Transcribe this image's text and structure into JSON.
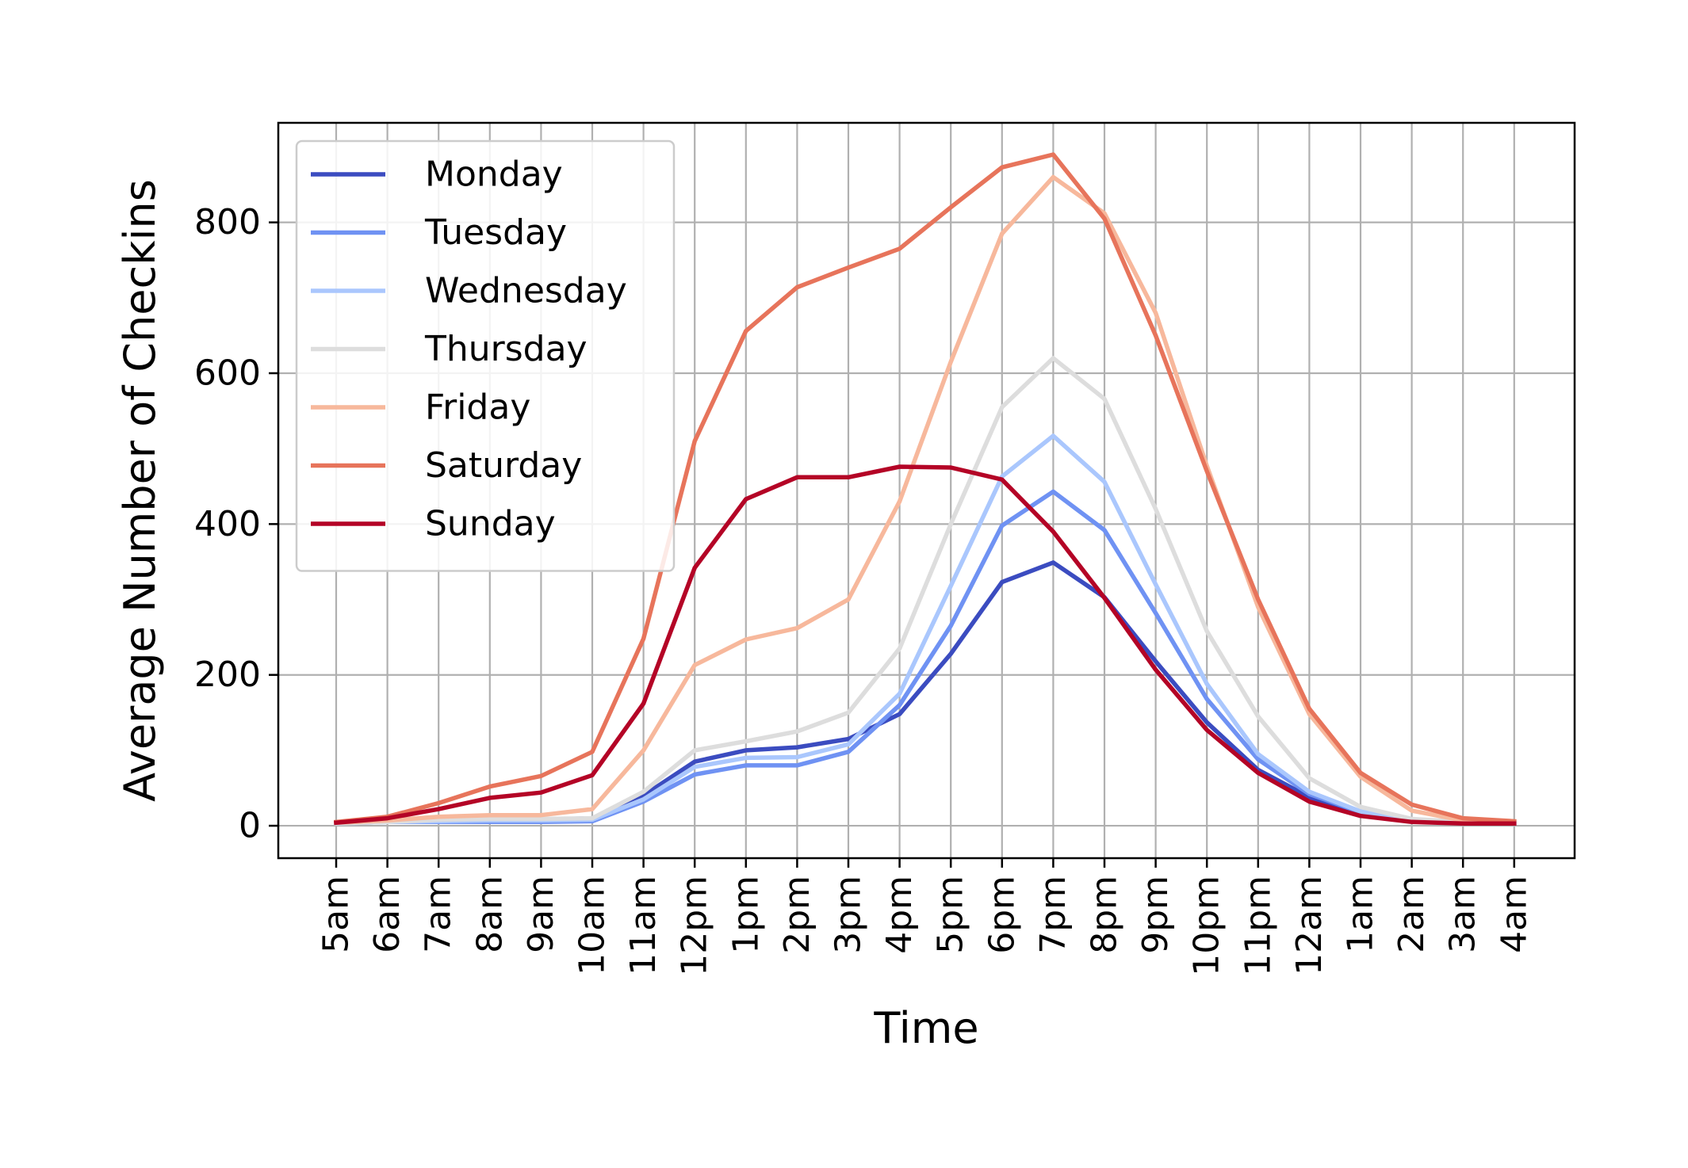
{
  "chart_data": {
    "type": "line",
    "title": "",
    "xlabel": "Time",
    "ylabel": "Average Number of Checkins",
    "ylim": [
      -43,
      932
    ],
    "yticks": [
      0,
      200,
      400,
      600,
      800
    ],
    "grid": true,
    "legend_position": "top-left",
    "categories": [
      "5am",
      "6am",
      "7am",
      "8am",
      "9am",
      "10am",
      "11am",
      "12pm",
      "1pm",
      "2pm",
      "3pm",
      "4pm",
      "5pm",
      "6pm",
      "7pm",
      "8pm",
      "9pm",
      "10pm",
      "11pm",
      "12am",
      "1am",
      "2am",
      "3am",
      "4am"
    ],
    "series": [
      {
        "name": "Monday",
        "color": "#3b4cc0",
        "values": [
          4,
          6,
          8,
          8,
          8,
          10,
          40,
          85,
          100,
          104,
          115,
          148,
          228,
          323,
          349,
          303,
          218,
          137,
          74,
          38,
          15,
          6,
          4,
          4
        ]
      },
      {
        "name": "Tuesday",
        "color": "#6f92f3",
        "values": [
          3,
          5,
          5,
          5,
          5,
          6,
          32,
          68,
          80,
          80,
          98,
          160,
          265,
          398,
          443,
          392,
          282,
          168,
          88,
          42,
          18,
          7,
          4,
          4
        ]
      },
      {
        "name": "Wednesday",
        "color": "#aac7fd",
        "values": [
          3,
          5,
          6,
          7,
          7,
          8,
          35,
          78,
          90,
          91,
          108,
          175,
          318,
          463,
          517,
          456,
          320,
          188,
          95,
          45,
          19,
          7,
          4,
          4
        ]
      },
      {
        "name": "Thursday",
        "color": "#dddddd",
        "values": [
          3,
          5,
          8,
          9,
          9,
          10,
          45,
          100,
          112,
          125,
          150,
          235,
          400,
          555,
          620,
          566,
          420,
          258,
          145,
          63,
          25,
          9,
          5,
          4
        ]
      },
      {
        "name": "Friday",
        "color": "#f7b89c",
        "values": [
          4,
          7,
          12,
          14,
          14,
          22,
          100,
          213,
          247,
          262,
          300,
          430,
          615,
          785,
          860,
          812,
          680,
          477,
          290,
          148,
          65,
          20,
          7,
          5
        ]
      },
      {
        "name": "Saturday",
        "color": "#e7745b",
        "values": [
          5,
          12,
          30,
          52,
          66,
          98,
          248,
          510,
          656,
          714,
          740,
          765,
          820,
          873,
          890,
          805,
          650,
          470,
          300,
          155,
          70,
          28,
          10,
          6
        ]
      },
      {
        "name": "Sunday",
        "color": "#b40426",
        "values": [
          4,
          10,
          22,
          37,
          44,
          67,
          162,
          342,
          433,
          462,
          462,
          476,
          475,
          459,
          390,
          302,
          207,
          127,
          70,
          32,
          13,
          5,
          3,
          3
        ]
      }
    ]
  }
}
